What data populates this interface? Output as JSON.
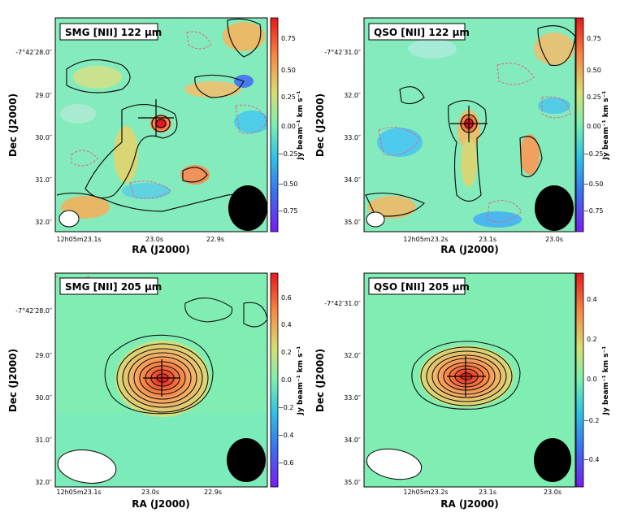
{
  "panels": [
    {
      "title": "SMG [NII] 122 μm",
      "ra_ticks": [
        "12h05m23.1s",
        "23.0s",
        "22.9s"
      ],
      "dec_ticks": [
        "-7°42′28.0″",
        "29.0″",
        "30.0″",
        "31.0″",
        "32.0″"
      ],
      "xlabel": "RA (J2000)",
      "ylabel": "Dec (J2000)",
      "cbar_label": "Jy beam⁻¹ km s⁻¹",
      "cbar_ticks": [
        "0.75",
        "0.50",
        "0.25",
        "0.00",
        "−0.25",
        "−0.50",
        "−0.75"
      ]
    },
    {
      "title": "QSO [NII] 122 μm",
      "ra_ticks": [
        "12h05m23.2s",
        "23.1s",
        "23.0s"
      ],
      "dec_ticks": [
        "-7°42′31.0″",
        "32.0″",
        "33.0″",
        "34.0″",
        "35.0″"
      ],
      "xlabel": "RA (J2000)",
      "ylabel": "Dec (J2000)",
      "cbar_label": "Jy beam⁻¹ km s⁻¹",
      "cbar_ticks": [
        "0.75",
        "0.50",
        "0.25",
        "0.00",
        "−0.25",
        "−0.50",
        "−0.75"
      ]
    },
    {
      "title": "SMG [NII] 205 μm",
      "ra_ticks": [
        "12h05m23.1s",
        "23.0s",
        "22.9s"
      ],
      "dec_ticks": [
        "-7°42′28.0″",
        "29.0″",
        "30.0″",
        "31.0″",
        "32.0″"
      ],
      "xlabel": "RA (J2000)",
      "ylabel": "Dec (J2000)",
      "cbar_label": "Jy beam⁻¹ km s⁻¹",
      "cbar_ticks": [
        "0.6",
        "0.4",
        "0.2",
        "0.0",
        "−0.2",
        "−0.4",
        "−0.6"
      ]
    },
    {
      "title": "QSO [NII] 205 μm",
      "ra_ticks": [
        "12h05m23.2s",
        "23.1s",
        "23.0s"
      ],
      "dec_ticks": [
        "-7°42′31.0″",
        "32.0″",
        "33.0″",
        "34.0″",
        "35.0″"
      ],
      "xlabel": "RA (J2000)",
      "ylabel": "Dec (J2000)",
      "cbar_label": "Jy beam⁻¹ km s⁻¹",
      "cbar_ticks": [
        "0.4",
        "0.2",
        "0.0",
        "−0.2",
        "−0.4"
      ]
    }
  ],
  "colors": {
    "cmap_top": "#e8171c",
    "cmap_mid": "#7cefae",
    "cmap_bottom": "#7a1df0",
    "contour": "#111111",
    "neg_contour": "#e0608a"
  }
}
